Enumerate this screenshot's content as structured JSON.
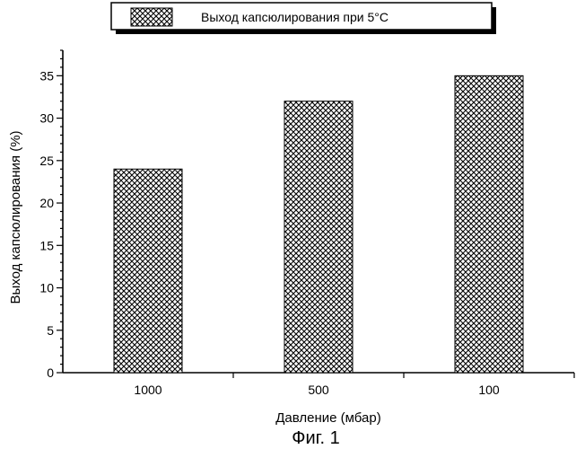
{
  "chart_data": {
    "type": "bar",
    "categories": [
      "1000",
      "500",
      "100"
    ],
    "series": [
      {
        "name": "Выход капсюлирования при 5°C",
        "values": [
          24,
          32,
          35
        ]
      }
    ],
    "xlabel": "Давление (мбар)",
    "ylabel": "Выход капсюлирования (%)",
    "ylim": [
      0,
      38
    ],
    "yticks": [
      0,
      5,
      10,
      15,
      20,
      25,
      30,
      35
    ],
    "grid": false,
    "legend_position": "top-center",
    "bar_pattern": "crosshatch",
    "colors": {
      "bar_fill": "#ffffff",
      "hatch": "#000000",
      "axis": "#000000"
    }
  },
  "caption": "Фиг. 1"
}
